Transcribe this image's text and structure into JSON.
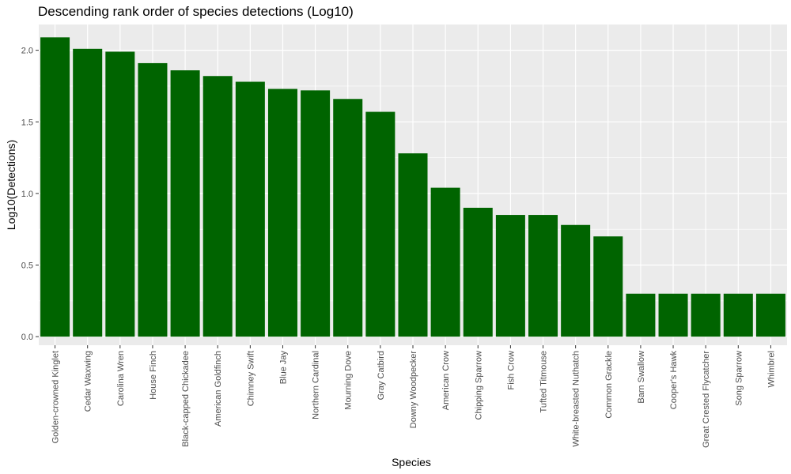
{
  "chart_data": {
    "type": "bar",
    "title": "Descending rank order of species detections (Log10)",
    "xlabel": "Species",
    "ylabel": "Log10(Detections)",
    "ylim": [
      -0.06,
      2.18
    ],
    "yticks": [
      "0.0",
      "0.5",
      "1.0",
      "1.5",
      "2.0"
    ],
    "categories": [
      "Golden-crowned Kinglet",
      "Cedar Waxwing",
      "Carolina Wren",
      "House Finch",
      "Black-capped Chickadee",
      "American Goldfinch",
      "Chimney Swift",
      "Blue Jay",
      "Northern Cardinal",
      "Mourning Dove",
      "Gray Catbird",
      "Downy Woodpecker",
      "American Crow",
      "Chipping Sparrow",
      "Fish Crow",
      "Tufted Titmouse",
      "White-breasted Nuthatch",
      "Common Grackle",
      "Barn Swallow",
      "Cooper's Hawk",
      "Great Crested Flycatcher",
      "Song Sparrow",
      "Whimbrel"
    ],
    "values": [
      2.09,
      2.01,
      1.99,
      1.91,
      1.86,
      1.82,
      1.78,
      1.73,
      1.72,
      1.66,
      1.57,
      1.28,
      1.04,
      0.9,
      0.85,
      0.85,
      0.78,
      0.7,
      0.3,
      0.3,
      0.3,
      0.3,
      0.3
    ],
    "grid": true,
    "legend": "none",
    "colors": {
      "bar": "#006400",
      "panel": "#ebebeb",
      "grid": "#ffffff"
    }
  }
}
